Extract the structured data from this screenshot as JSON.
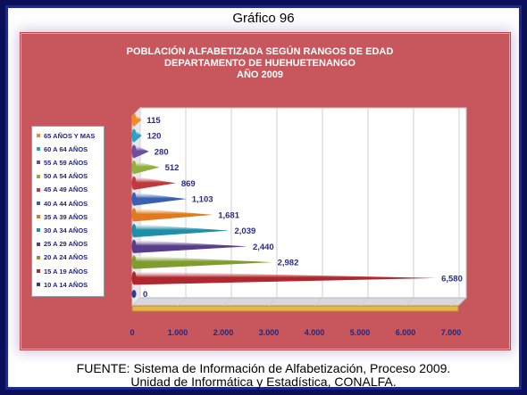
{
  "page": {
    "title": "Gráfico 96",
    "source_line1": "FUENTE: Sistema de Información de Alfabetización, Proceso 2009.",
    "source_line2": "Unidad de Informática y Estadística, CONALFA."
  },
  "colors": {
    "panel": "#c8575d",
    "plot_background": "#ffffff",
    "value_labels": "#2b2b8a"
  },
  "chart_data": {
    "type": "bar",
    "orientation": "horizontal",
    "style": "3d-cones",
    "title": [
      "POBLACIÓN ALFABETIZADA SEGÚN RANGOS DE EDAD",
      "DEPARTAMENTO DE HUEHUETENANGO",
      "AÑO 2009"
    ],
    "categories": [
      "10 A 14 AÑOS",
      "15 A 19 AÑOS",
      "20 A 24 AÑOS",
      "25 A 29 AÑOS",
      "30 A 34 AÑOS",
      "35 A 39 AÑOS",
      "40 A 44 AÑOS",
      "45 A 49 AÑOS",
      "50 A 54 AÑOS",
      "55 A 59 AÑOS",
      "60 A 64 AÑOS",
      "65 AÑOS Y MAS"
    ],
    "values": [
      0,
      6580,
      2982,
      2440,
      2039,
      1681,
      1103,
      869,
      512,
      280,
      120,
      115
    ],
    "value_labels": [
      "0",
      "6,580",
      "2,982",
      "2,440",
      "2,039",
      "1,681",
      "1,103",
      "869",
      "512",
      "280",
      "120",
      "115"
    ],
    "bar_colors": [
      "#2a3f94",
      "#b0272d",
      "#7f9c2e",
      "#5a3d8a",
      "#1e8fa6",
      "#e07a1c",
      "#3a5fb0",
      "#c0393f",
      "#8fb040",
      "#6d4ea0",
      "#2aa3c0",
      "#f28a2a"
    ],
    "xlim": [
      0,
      7000
    ],
    "x_ticks": [
      "0",
      "1.000",
      "2.000",
      "3.000",
      "4.000",
      "5.000",
      "6.000",
      "7.000"
    ],
    "legend": {
      "position": "left",
      "order": [
        "65 AÑOS Y MAS",
        "60 A 64 AÑOS",
        "55 A 59 AÑOS",
        "50 A 54 AÑOS",
        "45 A 49 AÑOS",
        "40 A 44 AÑOS",
        "35 A 39 AÑOS",
        "30 A 34 AÑOS",
        "25 A 29 AÑOS",
        "20 A 24 AÑOS",
        "15 A 19 AÑOS",
        "10 A 14 AÑOS"
      ]
    },
    "grid": true
  }
}
